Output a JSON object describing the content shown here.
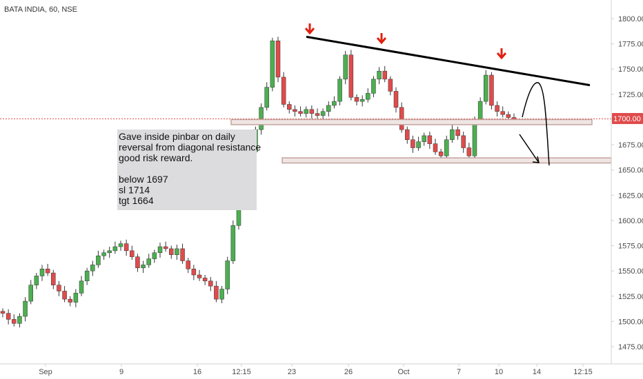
{
  "header": {
    "symbol_title": "BATA INDIA, 60, NSE"
  },
  "colors": {
    "up": "#4caf50",
    "down": "#e04b4b",
    "wick": "#333333",
    "price_line": "#e04b4b",
    "price_badge": "#e04b4b",
    "zone_border": "#c4a29c",
    "zone_fill": "#efe6e4",
    "arrow": "#e02010",
    "trendline": "#000000",
    "note_bg": "#dcdcdf",
    "axis_line": "#d0d0d0"
  },
  "price_axis": {
    "ticks": [
      "1800.00",
      "1775.00",
      "1750.00",
      "1725.00",
      "1700.00",
      "1675.00",
      "1650.00",
      "1625.00",
      "1600.00",
      "1575.00",
      "1550.00",
      "1525.00",
      "1500.00",
      "1475.00"
    ],
    "last_price_label": "1700.00"
  },
  "time_axis": {
    "ticks": [
      "Sep",
      "9",
      "16",
      "12:15",
      "23",
      "26",
      "Oct",
      "7",
      "10",
      "14",
      "12:15"
    ]
  },
  "annotation": {
    "lines": [
      "Gave inside pinbar on daily",
      "reversal from diagonal resistance",
      "good risk reward.",
      "",
      "below 1697",
      "sl 1714",
      "tgt 1664"
    ]
  },
  "chart_data": {
    "type": "candlestick",
    "title": "BATA INDIA, 60, NSE",
    "ylim": [
      1462,
      1812
    ],
    "x_ticks": [
      "Sep",
      "9",
      "16",
      "12:15",
      "23",
      "26",
      "Oct",
      "7",
      "10",
      "14",
      "12:15"
    ],
    "levels": {
      "entry_below": 1697,
      "stop_loss": 1714,
      "target": 1664,
      "last_price": 1700
    },
    "zones": [
      {
        "low": 1697,
        "high": 1700
      },
      {
        "low": 1659,
        "high": 1662
      }
    ],
    "trendline": {
      "from_close_index": 0,
      "points": [
        1782,
        1734
      ]
    },
    "approx_close_path": [
      1508,
      1502,
      1498,
      1505,
      1520,
      1536,
      1545,
      1552,
      1548,
      1536,
      1530,
      1522,
      1519,
      1528,
      1540,
      1550,
      1556,
      1565,
      1568,
      1570,
      1574,
      1577,
      1570,
      1564,
      1553,
      1556,
      1562,
      1568,
      1574,
      1572,
      1566,
      1572,
      1560,
      1552,
      1546,
      1543,
      1540,
      1535,
      1522,
      1532,
      1560,
      1595,
      1620,
      1650,
      1668,
      1690,
      1712,
      1732,
      1778,
      1742,
      1715,
      1710,
      1708,
      1706,
      1710,
      1706,
      1704,
      1708,
      1714,
      1718,
      1740,
      1764,
      1722,
      1718,
      1720,
      1726,
      1740,
      1748,
      1740,
      1728,
      1712,
      1690,
      1680,
      1672,
      1678,
      1684,
      1676,
      1668,
      1664,
      1680,
      1690,
      1684,
      1672,
      1664,
      1700,
      1718,
      1744,
      1714,
      1708,
      1705,
      1702,
      1700
    ]
  }
}
